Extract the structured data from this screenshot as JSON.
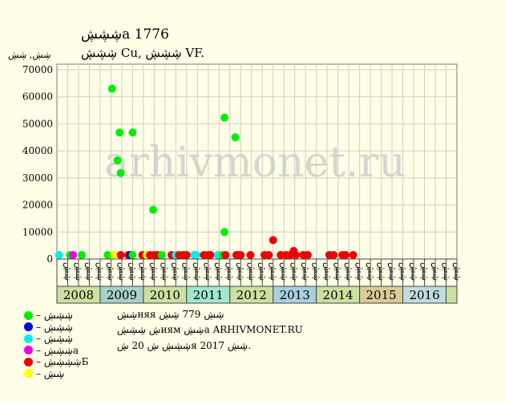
{
  "header": {
    "title": "ڜڜڜа 1776",
    "subtitle": "ڜڜڜ Cu, ڜڜڜ VF.",
    "yunit": "ڜڜ, ڜڜ"
  },
  "watermark": "arhivmonet.ru",
  "info": {
    "line1": "ڜڜняя ڜڜ 779 ڜڜ",
    "line2": "ڜ ڜڜڜиям ڜڜа ARHIVMONET.RU",
    "line3": "ڜڜڜ ڜ 20 ڜя 2017 ڜڜ."
  },
  "legend": [
    {
      "label": "– ڜڜڜ",
      "color": "#00ee00"
    },
    {
      "label": "– ڜڜڜ",
      "color": "#0000dd"
    },
    {
      "label": "– ڜڜڜ",
      "color": "#00eeee"
    },
    {
      "label": "– ڜڜڜа",
      "color": "#ee00ee"
    },
    {
      "label": "– ڜڜڜڜБ",
      "color": "#ee0000"
    },
    {
      "label": "– ڜڜ",
      "color": "#ffff00"
    }
  ],
  "chart_data": {
    "type": "scatter",
    "title": "ڜڜڜа 1776",
    "ylabel": "ڜڜ, ڜڜ",
    "ylim": [
      0,
      70000
    ],
    "yticks": [
      0,
      10000,
      20000,
      30000,
      40000,
      50000,
      60000,
      70000
    ],
    "years": [
      "2008",
      "2009",
      "2010",
      "2011",
      "2012",
      "2013",
      "2014",
      "2015",
      "2016"
    ],
    "year_colors": [
      "#cce0a0",
      "#a8d0c8",
      "#cce0a0",
      "#a0e8d0",
      "#cce0a0",
      "#a8d0e0",
      "#cce0a0",
      "#d8cc98",
      "#c0dcdc"
    ],
    "months": [
      "ڜڜ",
      "ڜڜ",
      "ڜڜ",
      "ڜڜ",
      "ڜڜ",
      "ڜڜ",
      "ڜڜ",
      "ڜڜ",
      "ڜڜ",
      "ڜڜ",
      "ڜڜ",
      "ڜڜ",
      "ڜڜ",
      "ڜڜ",
      "ڜڜ",
      "ڜڜ",
      "ڜڜ",
      "ڜڜ",
      "ڜڜ",
      "ڜڜ",
      "ڜڜ",
      "ڜڜ",
      "ڜڜ",
      "ڜڜ",
      "ڜڜ",
      "ڜڜ",
      "ڜڜ",
      "ڜڜ",
      "ڜڜ",
      "ڜڜ",
      "ڜڜ",
      "ڜڜ",
      "ڜڜ",
      "ڜڜ",
      "ڜڜ",
      "ڜڜ",
      "ڜڜ"
    ],
    "points": [
      {
        "x": 0.2,
        "y": 1500,
        "c": "#00eeee"
      },
      {
        "x": 1.2,
        "y": 1500,
        "c": "#00ee00"
      },
      {
        "x": 1.5,
        "y": 1500,
        "c": "#ee00ee"
      },
      {
        "x": 2.3,
        "y": 1500,
        "c": "#00ee00"
      },
      {
        "x": 4.7,
        "y": 1500,
        "c": "#00ee00"
      },
      {
        "x": 5.1,
        "y": 63000,
        "c": "#00ee00"
      },
      {
        "x": 5.3,
        "y": 1500,
        "c": "#ffff00"
      },
      {
        "x": 5.6,
        "y": 36500,
        "c": "#00ee00"
      },
      {
        "x": 5.8,
        "y": 46800,
        "c": "#00ee00"
      },
      {
        "x": 5.9,
        "y": 31800,
        "c": "#00ee00"
      },
      {
        "x": 5.9,
        "y": 1500,
        "c": "#ee0000"
      },
      {
        "x": 6.6,
        "y": 1500,
        "c": "#ee0000"
      },
      {
        "x": 6.8,
        "y": 1500,
        "c": "#0000dd"
      },
      {
        "x": 7.0,
        "y": 46800,
        "c": "#00ee00"
      },
      {
        "x": 7.0,
        "y": 1500,
        "c": "#00ee00"
      },
      {
        "x": 7.9,
        "y": 1500,
        "c": "#ee0000"
      },
      {
        "x": 8.3,
        "y": 1500,
        "c": "#ffff00"
      },
      {
        "x": 8.6,
        "y": 1500,
        "c": "#ee0000"
      },
      {
        "x": 8.9,
        "y": 18200,
        "c": "#00ee00"
      },
      {
        "x": 9.0,
        "y": 1500,
        "c": "#ee0000"
      },
      {
        "x": 9.3,
        "y": 1500,
        "c": "#ee0000"
      },
      {
        "x": 9.7,
        "y": 1500,
        "c": "#00ee00"
      },
      {
        "x": 10.6,
        "y": 1500,
        "c": "#ee0000"
      },
      {
        "x": 11.0,
        "y": 1500,
        "c": "#00eeee"
      },
      {
        "x": 11.3,
        "y": 1500,
        "c": "#ee0000"
      },
      {
        "x": 11.7,
        "y": 1500,
        "c": "#ee0000"
      },
      {
        "x": 12.0,
        "y": 1500,
        "c": "#ee0000"
      },
      {
        "x": 12.7,
        "y": 1500,
        "c": "#00eeee"
      },
      {
        "x": 12.9,
        "y": 1500,
        "c": "#00eeee"
      },
      {
        "x": 13.6,
        "y": 1500,
        "c": "#ee0000"
      },
      {
        "x": 14.0,
        "y": 1500,
        "c": "#ee0000"
      },
      {
        "x": 14.2,
        "y": 1500,
        "c": "#ee0000"
      },
      {
        "x": 14.9,
        "y": 1500,
        "c": "#00eeee"
      },
      {
        "x": 15.3,
        "y": 1500,
        "c": "#00ee00"
      },
      {
        "x": 15.5,
        "y": 52300,
        "c": "#00ee00"
      },
      {
        "x": 15.5,
        "y": 10000,
        "c": "#00ee00"
      },
      {
        "x": 15.6,
        "y": 1500,
        "c": "#ee0000"
      },
      {
        "x": 16.5,
        "y": 45000,
        "c": "#00ee00"
      },
      {
        "x": 16.6,
        "y": 1500,
        "c": "#ee0000"
      },
      {
        "x": 16.8,
        "y": 1500,
        "c": "#ee0000"
      },
      {
        "x": 17.0,
        "y": 1500,
        "c": "#ee0000"
      },
      {
        "x": 17.9,
        "y": 1500,
        "c": "#ee0000"
      },
      {
        "x": 19.2,
        "y": 1500,
        "c": "#ee0000"
      },
      {
        "x": 19.6,
        "y": 1500,
        "c": "#ee0000"
      },
      {
        "x": 20.0,
        "y": 7000,
        "c": "#ee0000"
      },
      {
        "x": 20.7,
        "y": 1500,
        "c": "#ee0000"
      },
      {
        "x": 21.2,
        "y": 1500,
        "c": "#ee0000"
      },
      {
        "x": 21.6,
        "y": 1500,
        "c": "#ee0000"
      },
      {
        "x": 21.9,
        "y": 3000,
        "c": "#ee0000"
      },
      {
        "x": 22.1,
        "y": 1500,
        "c": "#ee0000"
      },
      {
        "x": 22.8,
        "y": 1500,
        "c": "#ee0000"
      },
      {
        "x": 23.2,
        "y": 1500,
        "c": "#ee0000"
      },
      {
        "x": 25.2,
        "y": 1500,
        "c": "#ee0000"
      },
      {
        "x": 25.6,
        "y": 1500,
        "c": "#ee0000"
      },
      {
        "x": 26.4,
        "y": 1500,
        "c": "#ee0000"
      },
      {
        "x": 26.7,
        "y": 1500,
        "c": "#ee0000"
      },
      {
        "x": 27.4,
        "y": 1500,
        "c": "#ee0000"
      }
    ]
  }
}
